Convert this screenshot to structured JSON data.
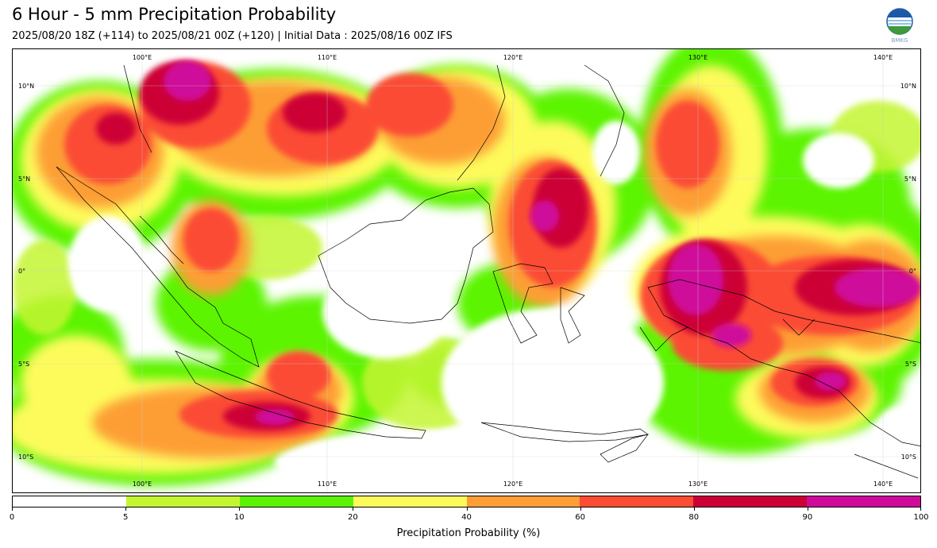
{
  "header": {
    "title": "6 Hour - 5 mm Precipitation Probability",
    "subtitle": "2025/08/20 18Z (+114) to 2025/08/21 00Z (+120) | Initial Data : 2025/08/16 00Z IFS"
  },
  "logo": {
    "text": "BMKG"
  },
  "map": {
    "lon_range": [
      93,
      142
    ],
    "lat_range": [
      -12,
      12
    ],
    "lon_labels": [
      "100°E",
      "110°E",
      "120°E",
      "130°E",
      "140°E"
    ],
    "lat_labels": [
      "10°N",
      "5°N",
      "0°",
      "5°S",
      "10°S"
    ]
  },
  "colorbar": {
    "label": "Precipitation Probability (%)",
    "ticks": [
      "0",
      "5",
      "10",
      "20",
      "40",
      "60",
      "80",
      "90",
      "100"
    ],
    "colors": [
      "#ffffff",
      "#c4f533",
      "#5cf406",
      "#fdfb5c",
      "#fd9e36",
      "#fb4c34",
      "#cc0036",
      "#cf0a9b"
    ]
  }
}
